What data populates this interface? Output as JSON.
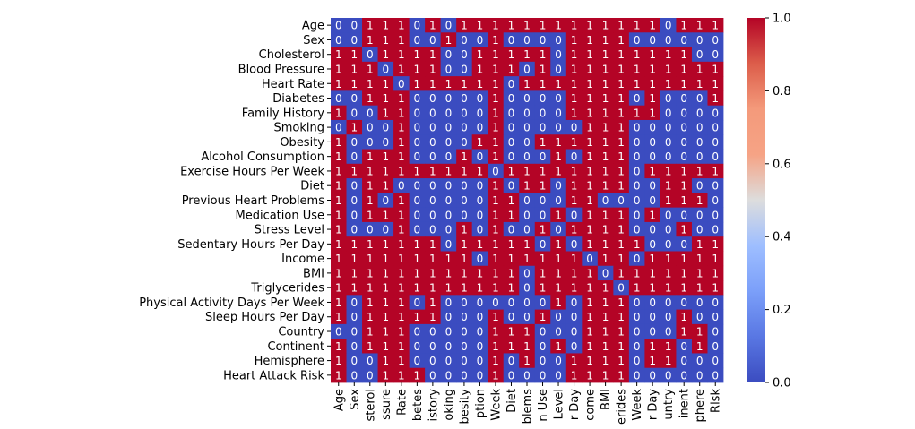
{
  "chart_data": {
    "type": "heatmap",
    "title": "",
    "xlabel": "",
    "ylabel": "",
    "row_labels": [
      "Age",
      "Sex",
      "Cholesterol",
      "Blood Pressure",
      "Heart Rate",
      "Diabetes",
      "Family History",
      "Smoking",
      "Obesity",
      "Alcohol Consumption",
      "Exercise Hours Per Week",
      "Diet",
      "Previous Heart Problems",
      "Medication Use",
      "Stress Level",
      "Sedentary Hours Per Day",
      "Income",
      "BMI",
      "Triglycerides",
      "Physical Activity Days Per Week",
      "Sleep Hours Per Day",
      "Country",
      "Continent",
      "Hemisphere",
      "Heart Attack Risk"
    ],
    "col_labels": [
      "Age",
      "Sex",
      "sterol",
      "ssure",
      "Rate",
      "betes",
      "istory",
      "oking",
      "besity",
      "ption",
      "Week",
      "Diet",
      "blems",
      "n Use",
      "Level",
      "r Day",
      "come",
      "BMI",
      "erides",
      "Week",
      "r Day",
      "untry",
      "inent",
      "phere",
      "Risk"
    ],
    "values": [
      [
        0,
        0,
        1,
        1,
        1,
        0,
        1,
        0,
        1,
        1,
        1,
        1,
        1,
        1,
        1,
        1,
        1,
        1,
        1,
        1,
        1,
        0,
        1,
        1,
        1
      ],
      [
        0,
        0,
        1,
        1,
        1,
        0,
        0,
        1,
        0,
        0,
        1,
        0,
        0,
        0,
        0,
        1,
        1,
        1,
        1,
        0,
        0,
        0,
        0,
        0,
        0
      ],
      [
        1,
        1,
        0,
        1,
        1,
        1,
        1,
        0,
        0,
        1,
        1,
        1,
        1,
        1,
        0,
        1,
        1,
        1,
        1,
        1,
        1,
        1,
        1,
        0,
        0
      ],
      [
        1,
        1,
        1,
        0,
        1,
        1,
        1,
        0,
        0,
        1,
        1,
        1,
        0,
        1,
        0,
        1,
        1,
        1,
        1,
        1,
        1,
        1,
        1,
        1,
        1
      ],
      [
        1,
        1,
        1,
        1,
        0,
        1,
        1,
        1,
        1,
        1,
        1,
        0,
        1,
        1,
        1,
        1,
        1,
        1,
        1,
        1,
        1,
        1,
        1,
        1,
        1
      ],
      [
        0,
        0,
        1,
        1,
        1,
        0,
        0,
        0,
        0,
        0,
        1,
        0,
        0,
        0,
        0,
        1,
        1,
        1,
        1,
        0,
        1,
        0,
        0,
        0,
        1
      ],
      [
        1,
        0,
        0,
        1,
        1,
        0,
        0,
        0,
        0,
        0,
        1,
        0,
        0,
        0,
        0,
        1,
        1,
        1,
        1,
        1,
        1,
        0,
        0,
        0,
        0
      ],
      [
        0,
        1,
        0,
        0,
        1,
        0,
        0,
        0,
        0,
        0,
        1,
        0,
        0,
        0,
        0,
        0,
        1,
        1,
        1,
        0,
        0,
        0,
        0,
        0,
        0
      ],
      [
        1,
        0,
        0,
        0,
        1,
        0,
        0,
        0,
        0,
        1,
        1,
        0,
        0,
        1,
        1,
        1,
        1,
        1,
        1,
        0,
        0,
        0,
        0,
        0,
        0
      ],
      [
        1,
        0,
        1,
        1,
        1,
        0,
        0,
        0,
        1,
        0,
        1,
        0,
        0,
        0,
        1,
        0,
        1,
        1,
        1,
        0,
        0,
        0,
        0,
        0,
        0
      ],
      [
        1,
        1,
        1,
        1,
        1,
        1,
        1,
        1,
        1,
        1,
        0,
        1,
        1,
        1,
        1,
        1,
        1,
        1,
        1,
        0,
        1,
        1,
        1,
        1,
        1
      ],
      [
        1,
        0,
        1,
        1,
        0,
        0,
        0,
        0,
        0,
        0,
        1,
        0,
        1,
        1,
        0,
        1,
        1,
        1,
        1,
        0,
        0,
        1,
        1,
        0,
        0
      ],
      [
        1,
        0,
        1,
        0,
        1,
        0,
        0,
        0,
        0,
        0,
        1,
        1,
        0,
        0,
        0,
        1,
        1,
        0,
        0,
        0,
        0,
        1,
        1,
        1,
        0
      ],
      [
        1,
        0,
        1,
        1,
        1,
        0,
        0,
        0,
        0,
        0,
        1,
        1,
        0,
        0,
        1,
        0,
        1,
        1,
        1,
        0,
        1,
        0,
        0,
        0,
        0
      ],
      [
        1,
        0,
        0,
        0,
        1,
        0,
        0,
        0,
        1,
        0,
        1,
        0,
        0,
        1,
        0,
        1,
        1,
        1,
        1,
        0,
        0,
        0,
        1,
        0,
        0
      ],
      [
        1,
        1,
        1,
        1,
        1,
        1,
        1,
        0,
        1,
        1,
        1,
        1,
        1,
        0,
        1,
        0,
        1,
        1,
        1,
        1,
        0,
        0,
        0,
        1,
        1
      ],
      [
        1,
        1,
        1,
        1,
        1,
        1,
        1,
        1,
        1,
        0,
        1,
        1,
        1,
        1,
        1,
        1,
        0,
        1,
        1,
        0,
        1,
        1,
        1,
        1,
        1
      ],
      [
        1,
        1,
        1,
        1,
        1,
        1,
        1,
        1,
        1,
        1,
        1,
        1,
        0,
        1,
        1,
        1,
        1,
        0,
        1,
        1,
        1,
        1,
        1,
        1,
        1
      ],
      [
        1,
        1,
        1,
        1,
        1,
        1,
        1,
        1,
        1,
        1,
        1,
        1,
        0,
        1,
        1,
        1,
        1,
        1,
        0,
        1,
        1,
        1,
        1,
        1,
        1
      ],
      [
        1,
        0,
        1,
        1,
        1,
        0,
        1,
        0,
        0,
        0,
        0,
        0,
        0,
        0,
        1,
        0,
        1,
        1,
        1,
        0,
        0,
        0,
        0,
        0,
        0
      ],
      [
        1,
        0,
        1,
        1,
        1,
        1,
        1,
        0,
        0,
        0,
        1,
        0,
        0,
        1,
        0,
        0,
        1,
        1,
        1,
        0,
        0,
        0,
        1,
        0,
        0
      ],
      [
        0,
        0,
        1,
        1,
        1,
        0,
        0,
        0,
        0,
        0,
        1,
        1,
        1,
        0,
        0,
        0,
        1,
        1,
        1,
        0,
        0,
        0,
        1,
        1,
        0
      ],
      [
        1,
        0,
        1,
        1,
        1,
        0,
        0,
        0,
        0,
        0,
        1,
        1,
        1,
        0,
        1,
        0,
        1,
        1,
        1,
        0,
        1,
        1,
        0,
        1,
        0
      ],
      [
        1,
        0,
        0,
        1,
        1,
        0,
        0,
        0,
        0,
        0,
        1,
        0,
        1,
        0,
        0,
        1,
        1,
        1,
        1,
        0,
        1,
        1,
        0,
        0,
        0
      ],
      [
        1,
        0,
        0,
        1,
        1,
        1,
        0,
        0,
        0,
        0,
        1,
        0,
        0,
        0,
        0,
        1,
        1,
        1,
        1,
        0,
        0,
        0,
        0,
        0,
        0
      ]
    ],
    "vmin": 0,
    "vmax": 1,
    "colormap": "coolwarm",
    "colors": {
      "low": "#3b4cc0",
      "mid": "#dddddd",
      "high": "#b40426"
    },
    "colorbar": {
      "ticks": [
        0.0,
        0.2,
        0.4,
        0.6,
        0.8,
        1.0
      ],
      "tick_labels": [
        "0.0",
        "0.2",
        "0.4",
        "0.6",
        "0.8",
        "1.0"
      ]
    },
    "grid": false,
    "legend": "right"
  }
}
